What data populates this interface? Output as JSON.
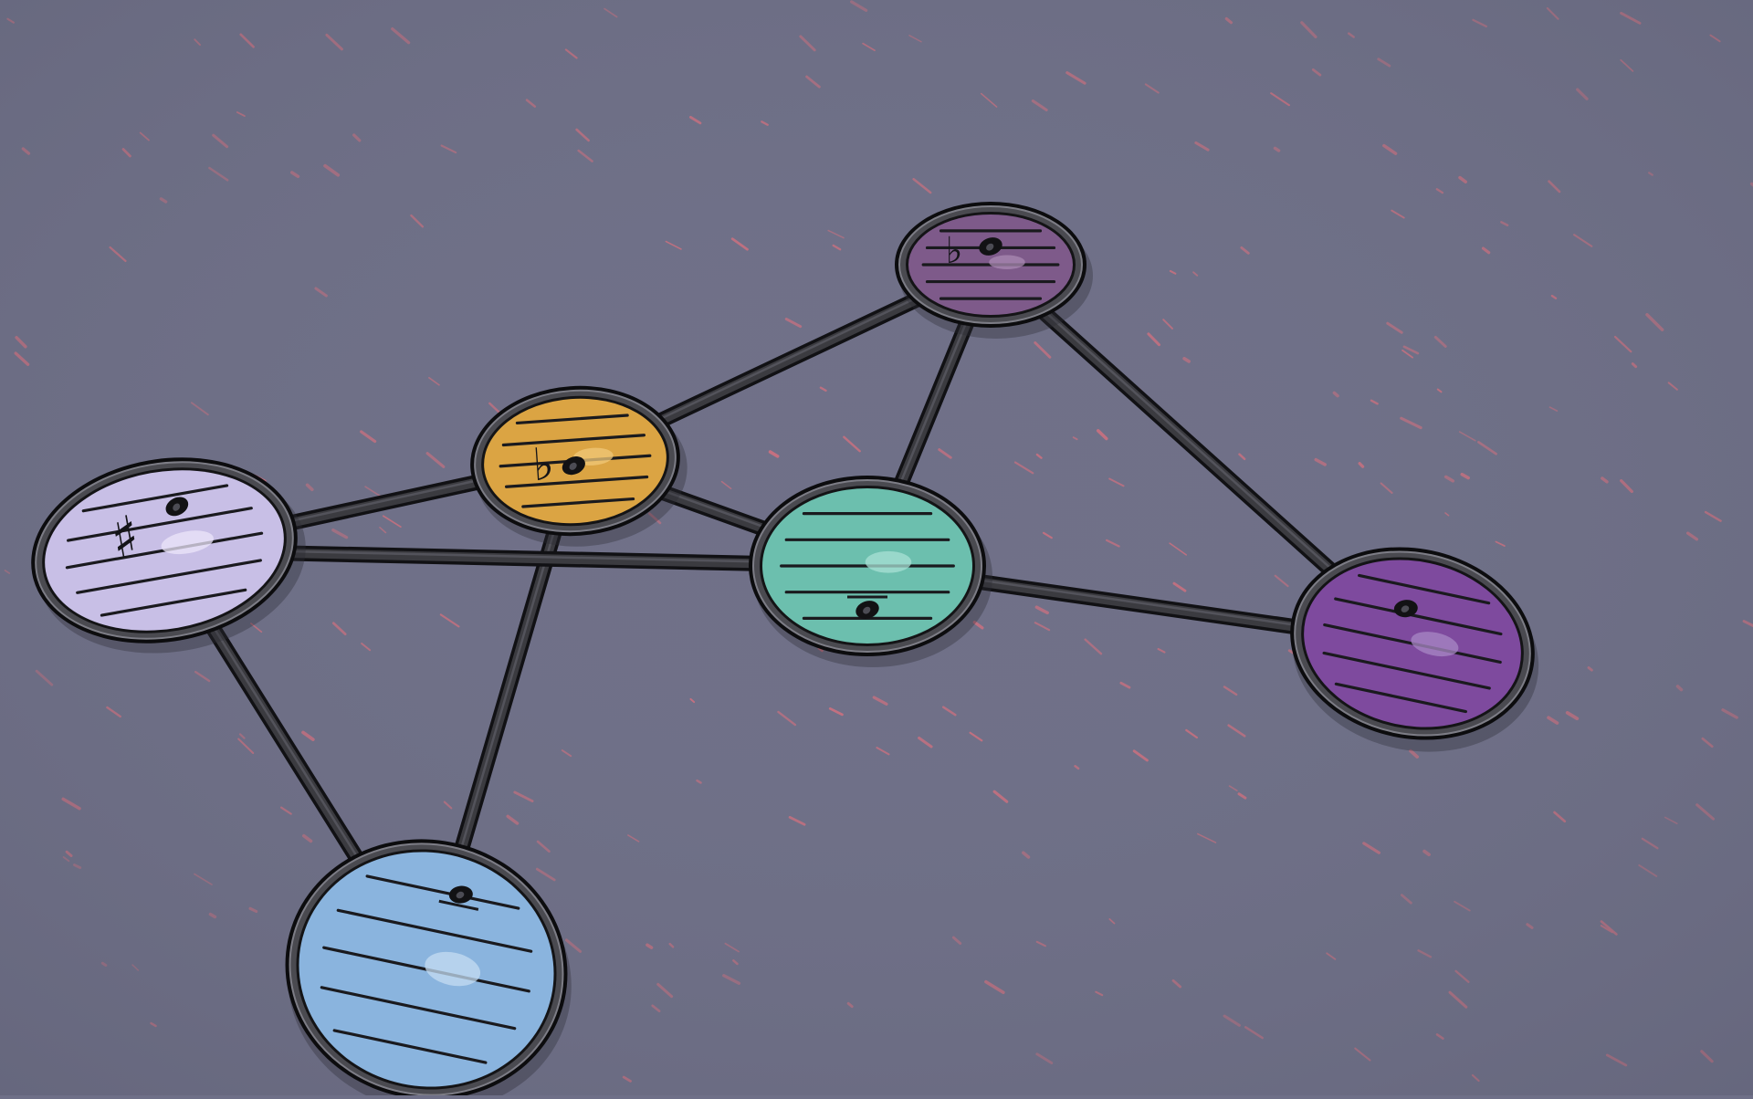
{
  "scene": {
    "background_color": "#6f7088",
    "speck_color": "#e0707e"
  },
  "nodes": [
    {
      "id": "purple-top",
      "fill": "#7e5a8a",
      "highlight": "#a98ab2",
      "accidental": "♭",
      "note_icon": "whole-note-icon",
      "staff_lines": 5
    },
    {
      "id": "orange",
      "fill": "#dba443",
      "highlight": "#f0c878",
      "accidental": "♭",
      "note_icon": "whole-note-icon",
      "staff_lines": 5
    },
    {
      "id": "lavender",
      "fill": "#c8bfe6",
      "highlight": "#ece6fa",
      "accidental": "♯",
      "note_icon": "whole-note-icon",
      "staff_lines": 5
    },
    {
      "id": "teal",
      "fill": "#6cbfae",
      "highlight": "#a8e0d4",
      "accidental": "",
      "note_icon": "whole-note-icon",
      "staff_lines": 5
    },
    {
      "id": "violet",
      "fill": "#7e4a9e",
      "highlight": "#a888c4",
      "accidental": "",
      "note_icon": "whole-note-icon",
      "staff_lines": 5
    },
    {
      "id": "blue",
      "fill": "#8ab4de",
      "highlight": "#c4dcf2",
      "accidental": "",
      "note_icon": "whole-note-icon",
      "staff_lines": 5
    }
  ],
  "edges": [
    [
      "purple-top",
      "orange"
    ],
    [
      "purple-top",
      "teal"
    ],
    [
      "purple-top",
      "violet"
    ],
    [
      "orange",
      "lavender"
    ],
    [
      "orange",
      "teal"
    ],
    [
      "orange",
      "blue"
    ],
    [
      "lavender",
      "teal"
    ],
    [
      "lavender",
      "blue"
    ],
    [
      "teal",
      "violet"
    ]
  ]
}
